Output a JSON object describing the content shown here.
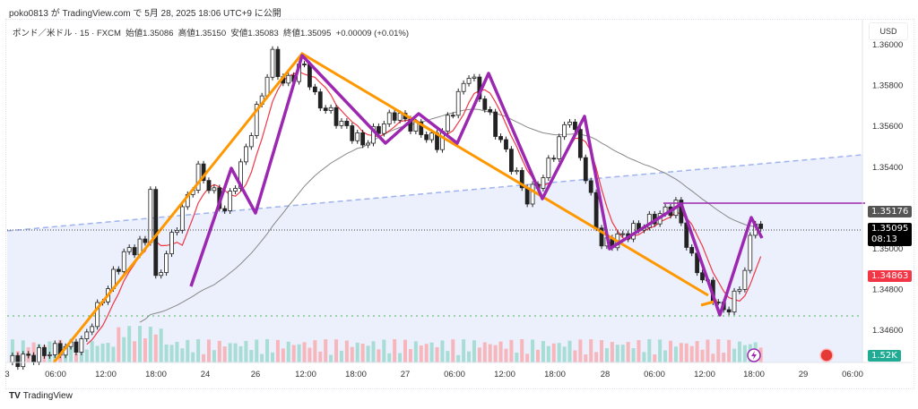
{
  "publisher": "poko0813 が TradingView.com で 5月 28, 2025 18:06 UTC+9 に公開",
  "legend": {
    "symbol": "ポンド／米ドル · 15 · FXCM",
    "open": "始値1.35086",
    "high": "高値1.35150",
    "low": "安値1.35083",
    "close": "終値1.35095",
    "change": "+0.00009 (+0.01%)"
  },
  "currency": "USD",
  "brand": "TradingView",
  "labels": {
    "level": "1.35176",
    "last": "1.35095",
    "countdown": "08:13",
    "ma": "1.34863",
    "volume": "1.52K"
  },
  "colors": {
    "up": "#089981",
    "down": "#f23645",
    "orange": "#ff9800",
    "purple": "#9c27b0",
    "ma_red": "#f23645",
    "ma_gray": "#888888"
  },
  "chart_data": {
    "type": "candlestick",
    "symbol": "GBPUSD 15m",
    "ylim": [
      1.3445,
      1.3602
    ],
    "yticks": [
      "1.36000",
      "1.35800",
      "1.35600",
      "1.35400",
      "1.35000",
      "1.34800",
      "1.34600"
    ],
    "ytick_values": [
      1.36,
      1.358,
      1.356,
      1.354,
      1.35,
      1.348,
      1.346
    ],
    "xticks": [
      "3",
      "06:00",
      "12:00",
      "18:00",
      "24",
      "26",
      "12:00",
      "18:00",
      "27",
      "06:00",
      "12:00",
      "18:00",
      "28",
      "06:00",
      "12:00",
      "18:00",
      "29",
      "06:00"
    ],
    "price_path": [
      [
        0,
        1.3444
      ],
      [
        14,
        1.3453
      ],
      [
        19,
        1.3481
      ],
      [
        22,
        1.3497
      ],
      [
        26,
        1.3503
      ],
      [
        27,
        1.3531
      ],
      [
        28,
        1.3483
      ],
      [
        32,
        1.3512
      ],
      [
        36,
        1.3538
      ],
      [
        41,
        1.3518
      ],
      [
        44,
        1.354
      ],
      [
        50,
        1.3594
      ],
      [
        52,
        1.358
      ],
      [
        56,
        1.359
      ],
      [
        58,
        1.3573
      ],
      [
        67,
        1.3551
      ],
      [
        73,
        1.3566
      ],
      [
        81,
        1.3551
      ],
      [
        87,
        1.3586
      ],
      [
        90,
        1.3569
      ],
      [
        98,
        1.3524
      ],
      [
        101,
        1.3535
      ],
      [
        106,
        1.3565
      ],
      [
        109,
        1.3535
      ],
      [
        112,
        1.3501
      ],
      [
        119,
        1.351
      ],
      [
        126,
        1.3521
      ],
      [
        129,
        1.3494
      ],
      [
        135,
        1.3468
      ],
      [
        138,
        1.348
      ],
      [
        141,
        1.3514
      ],
      [
        142,
        1.35095
      ]
    ],
    "current_price": 1.35095
  }
}
